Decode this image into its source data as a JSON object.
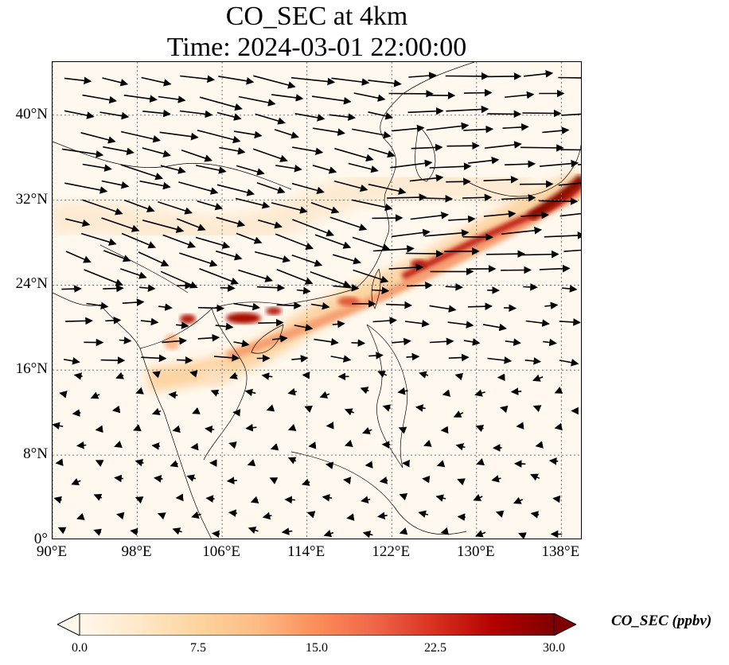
{
  "title": {
    "line1": "CO_SEC at 4km",
    "line2": "Time: 2024-03-01 22:00:00"
  },
  "map": {
    "lon_range": [
      90,
      140
    ],
    "lat_range": [
      0,
      45
    ],
    "lat_ticks": [
      "0°",
      "8°N",
      "16°N",
      "24°N",
      "32°N",
      "40°N"
    ],
    "lon_ticks": [
      "90°E",
      "98°E",
      "106°E",
      "114°E",
      "122°E",
      "130°E",
      "138°E"
    ],
    "gridlines": "dotted"
  },
  "colorbar": {
    "label": "CO_SEC (ppbv)",
    "ticks": [
      "0.0",
      "7.5",
      "15.0",
      "22.5",
      "30.0"
    ],
    "min": 0,
    "max": 30,
    "colormap": "OrRd",
    "colors": [
      "#fff7ec",
      "#fee8c8",
      "#fdd49e",
      "#fdbb84",
      "#fc8d59",
      "#ef6548",
      "#d7301f",
      "#b30000",
      "#7f0000"
    ],
    "extend": "both"
  },
  "plume": {
    "description_points": [
      {
        "lon": 102.5,
        "lat": 20.5,
        "value": 24
      },
      {
        "lon": 107.5,
        "lat": 20.5,
        "value": 26
      },
      {
        "lon": 110,
        "lat": 21,
        "value": 27
      },
      {
        "lon": 112,
        "lat": 20,
        "value": 14
      },
      {
        "lon": 118,
        "lat": 22,
        "value": 18
      },
      {
        "lon": 125,
        "lat": 26,
        "value": 25
      },
      {
        "lon": 128,
        "lat": 27.5,
        "value": 22
      },
      {
        "lon": 133,
        "lat": 29.5,
        "value": 24
      },
      {
        "lon": 137,
        "lat": 31.5,
        "value": 28
      },
      {
        "lon": 139.5,
        "lat": 33.5,
        "value": 30
      }
    ]
  }
}
